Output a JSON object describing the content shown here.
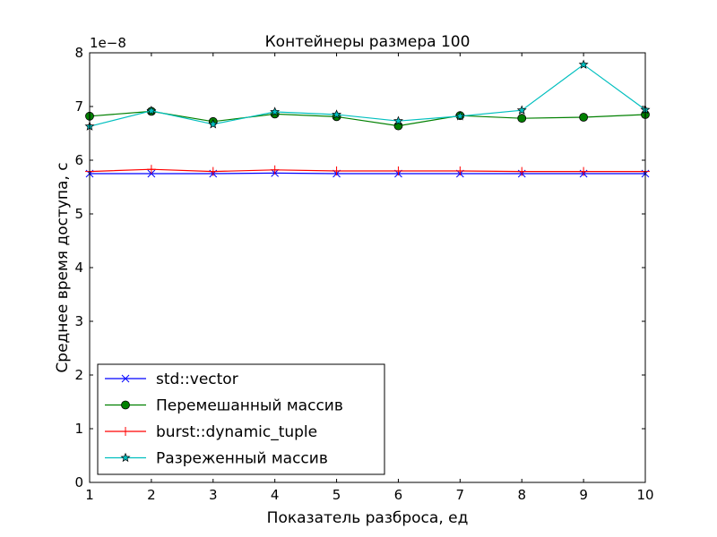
{
  "chart_data": {
    "type": "line",
    "title": "Контейнеры размера 100",
    "xlabel": "Показатель разброса, ед",
    "ylabel": "Среднее время доступа, с",
    "y_multiplier": "1e−8",
    "xlim": [
      1,
      10
    ],
    "ylim": [
      0,
      8
    ],
    "x_ticks": [
      "1",
      "2",
      "3",
      "4",
      "5",
      "6",
      "7",
      "8",
      "9",
      "10"
    ],
    "y_ticks": [
      "0",
      "1",
      "2",
      "3",
      "4",
      "5",
      "6",
      "7",
      "8"
    ],
    "grid": false,
    "legend_position": "bottom-left",
    "x": [
      1,
      2,
      3,
      4,
      5,
      6,
      7,
      8,
      9,
      10
    ],
    "series": [
      {
        "name": "std::vector",
        "color": "#0000ff",
        "marker": "x",
        "values": [
          5.75,
          5.75,
          5.75,
          5.76,
          5.75,
          5.75,
          5.75,
          5.75,
          5.75,
          5.75
        ]
      },
      {
        "name": "Перемешанный массив",
        "color": "#008000",
        "marker": "circle",
        "values": [
          6.82,
          6.91,
          6.72,
          6.86,
          6.81,
          6.64,
          6.83,
          6.78,
          6.8,
          6.85
        ]
      },
      {
        "name": "burst::dynamic_tuple",
        "color": "#ff0000",
        "marker": "plus",
        "values": [
          5.79,
          5.83,
          5.79,
          5.82,
          5.8,
          5.8,
          5.8,
          5.79,
          5.79,
          5.79
        ]
      },
      {
        "name": "Разреженный массив",
        "color": "#00bfbf",
        "marker": "star",
        "values": [
          6.63,
          6.92,
          6.67,
          6.9,
          6.85,
          6.73,
          6.82,
          6.93,
          7.78,
          6.94
        ]
      }
    ]
  }
}
